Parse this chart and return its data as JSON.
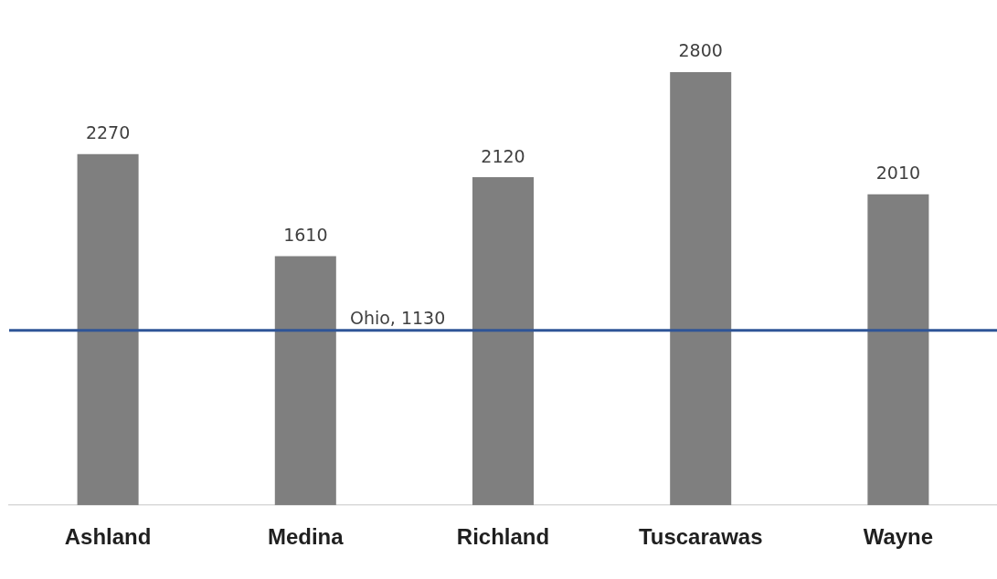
{
  "chart_data": {
    "type": "bar",
    "categories": [
      "Ashland",
      "Medina",
      "Richland",
      "Tuscarawas",
      "Wayne"
    ],
    "values": [
      2270,
      1610,
      2120,
      2800,
      2010
    ],
    "color": "#7f7f7f",
    "tick_labels": "x",
    "grid": false,
    "legend": false,
    "data_labels": true,
    "ref_lines": [
      {
        "axis": "y",
        "value": 1130,
        "label": "Ohio, 1130",
        "color": "#2f5597"
      }
    ]
  }
}
